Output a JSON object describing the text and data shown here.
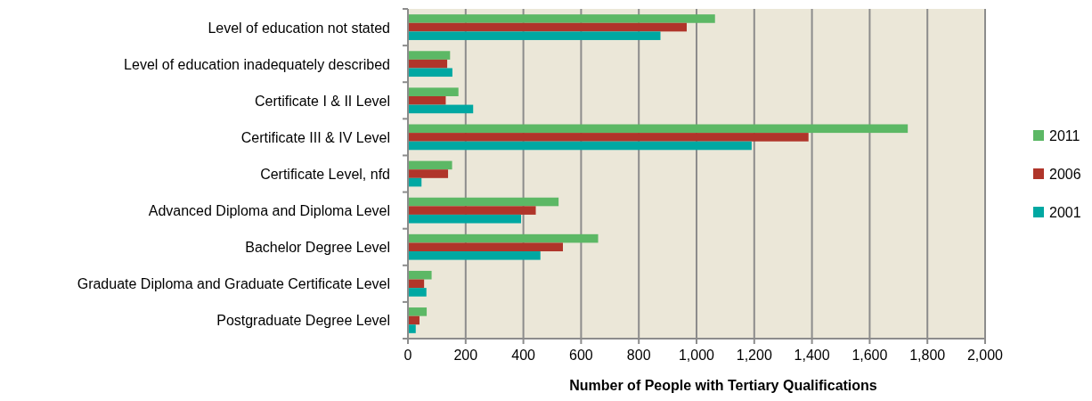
{
  "chart_data": {
    "type": "bar",
    "orientation": "horizontal",
    "xlabel": "Number of People with Tertiary Qualifications",
    "categories": [
      "Level of education not stated",
      "Level of education inadequately described",
      "Certificate I & II Level",
      "Certificate III & IV Level",
      "Certificate Level, nfd",
      "Advanced Diploma and Diploma Level",
      "Bachelor Degree Level",
      "Graduate Diploma and Graduate Certificate Level",
      "Postgraduate Degree Level"
    ],
    "series": [
      {
        "name": "2011",
        "color": "#5cb865",
        "values": [
          1064,
          146,
          175,
          1732,
          153,
          522,
          659,
          82,
          65
        ]
      },
      {
        "name": "2006",
        "color": "#b0352a",
        "values": [
          966,
          136,
          131,
          1388,
          139,
          443,
          537,
          56,
          40
        ]
      },
      {
        "name": "2001",
        "color": "#00a8a2",
        "values": [
          875,
          154,
          226,
          1191,
          47,
          392,
          459,
          64,
          27
        ]
      }
    ],
    "xlim": [
      0,
      2000
    ],
    "xticks": [
      0,
      {
        "value": 200,
        "label": "200"
      },
      {
        "value": 400,
        "label": "400"
      },
      {
        "value": 600,
        "label": "600"
      },
      {
        "value": 800,
        "label": "800"
      },
      {
        "value": 1000,
        "label": "1,000"
      },
      {
        "value": 1200,
        "label": "1,200"
      },
      {
        "value": 1400,
        "label": "1,400"
      },
      {
        "value": 1600,
        "label": "1,600"
      },
      {
        "value": 1800,
        "label": "1,800"
      },
      {
        "value": 2000,
        "label": "2,000"
      }
    ],
    "grid": "x",
    "legend": "right"
  }
}
